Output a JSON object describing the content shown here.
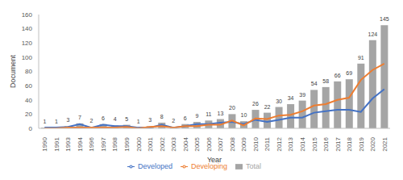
{
  "chart_data": {
    "type": "bar",
    "x_label": "Year",
    "y_label": "Document",
    "categories": [
      "1990",
      "1991",
      "1993",
      "1994",
      "1996",
      "1997",
      "1998",
      "1999",
      "2000",
      "2001",
      "2002",
      "2003",
      "2004",
      "2005",
      "2006",
      "2007",
      "2008",
      "2009",
      "2010",
      "2011",
      "2012",
      "2013",
      "2014",
      "2015",
      "2016",
      "2017",
      "2018",
      "2019",
      "2020",
      "2021"
    ],
    "series": [
      {
        "name": "Total",
        "type": "bar",
        "color": "#a5a5a5",
        "data_labels": true,
        "values": [
          1,
          1,
          3,
          7,
          2,
          6,
          4,
          5,
          1,
          3,
          8,
          2,
          6,
          9,
          11,
          13,
          20,
          10,
          26,
          22,
          30,
          34,
          39,
          54,
          58,
          66,
          69,
          91,
          124,
          145
        ]
      },
      {
        "name": "Developed",
        "type": "line",
        "color": "#4472c4",
        "values": [
          1,
          1,
          2,
          6,
          1,
          5,
          3,
          3,
          1,
          1,
          5,
          1,
          3,
          6,
          6,
          8,
          9,
          6,
          12,
          9,
          12,
          15,
          15,
          22,
          24,
          26,
          26,
          23,
          42,
          55
        ]
      },
      {
        "name": "Developing",
        "type": "line",
        "color": "#ed7d31",
        "values": [
          0,
          0,
          1,
          1,
          1,
          1,
          1,
          2,
          0,
          2,
          3,
          1,
          3,
          3,
          5,
          5,
          11,
          4,
          14,
          13,
          18,
          19,
          24,
          32,
          34,
          40,
          43,
          68,
          82,
          91
        ]
      }
    ],
    "ylim": [
      0,
      160
    ],
    "yticks": [
      0,
      20,
      40,
      60,
      80,
      100,
      120,
      140,
      160
    ],
    "grid": false,
    "legend": "bottom"
  }
}
